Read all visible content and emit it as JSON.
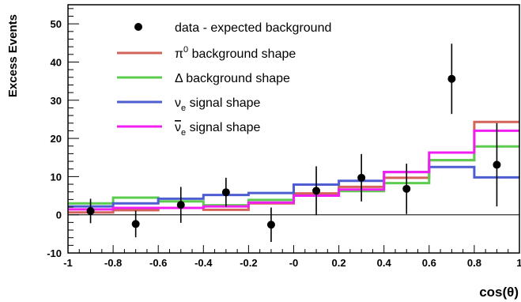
{
  "chart_data": {
    "type": "histogram-with-points",
    "title": "",
    "xlabel": "cos(θ)",
    "ylabel": "Excess Events",
    "xlim": [
      -1,
      1
    ],
    "ylim": [
      -10,
      55
    ],
    "x_ticks": [
      -1,
      -0.8,
      -0.6,
      -0.4,
      -0.2,
      0,
      0.2,
      0.4,
      0.6,
      0.8,
      1
    ],
    "x_tick_labels": [
      "-1",
      "-0.8",
      "-0.6",
      "-0.4",
      "-0.2",
      "-0",
      "0.2",
      "0.4",
      "0.6",
      "0.8",
      "1"
    ],
    "y_ticks": [
      -10,
      0,
      10,
      20,
      30,
      40,
      50
    ],
    "y_tick_labels": [
      "-10",
      "0",
      "10",
      "20",
      "30",
      "40",
      "50"
    ],
    "grid": false,
    "legend_position": "top-left",
    "bin_edges": [
      -1,
      -0.8,
      -0.6,
      -0.4,
      -0.2,
      0,
      0.2,
      0.4,
      0.6,
      0.8,
      1
    ],
    "data": {
      "name": "data - expected background",
      "color": "#000000",
      "x": [
        -0.9,
        -0.7,
        -0.5,
        -0.3,
        -0.1,
        0.1,
        0.3,
        0.5,
        0.7,
        0.9
      ],
      "y": [
        1.0,
        -2.4,
        2.6,
        5.9,
        -2.6,
        6.3,
        9.7,
        6.8,
        35.6,
        13.1
      ],
      "err": [
        3.2,
        3.5,
        4.7,
        3.8,
        4.5,
        6.4,
        6.2,
        6.6,
        9.2,
        10.9
      ]
    },
    "series": [
      {
        "name": "π⁰ background shape",
        "legend_main": "π",
        "legend_sup": "0",
        "legend_rest": " background shape",
        "color": "#d2645a",
        "values": [
          0.6,
          1.2,
          1.8,
          1.3,
          3.0,
          5.6,
          7.3,
          9.7,
          14.3,
          24.3
        ]
      },
      {
        "name": "Δ background shape",
        "legend_main": "Δ background shape",
        "legend_sup": "",
        "legend_rest": "",
        "color": "#5ccc4e",
        "values": [
          3.0,
          4.5,
          3.5,
          2.5,
          3.9,
          5.0,
          6.2,
          8.3,
          14.3,
          17.9
        ]
      },
      {
        "name": "νe signal shape",
        "legend_main": "ν",
        "legend_sub": "e",
        "legend_rest": " signal shape",
        "color": "#4e5ed2",
        "values": [
          2.2,
          3.0,
          4.2,
          5.2,
          5.7,
          7.9,
          8.9,
          11.2,
          12.5,
          9.8
        ]
      },
      {
        "name": "ν̄e signal shape",
        "legend_main": "ν",
        "legend_bar": true,
        "legend_sub": "e",
        "legend_rest": " signal shape",
        "color": "#f01ef0",
        "values": [
          1.4,
          1.8,
          1.8,
          2.2,
          3.2,
          5.0,
          6.6,
          11.2,
          16.3,
          22.0
        ]
      }
    ]
  }
}
